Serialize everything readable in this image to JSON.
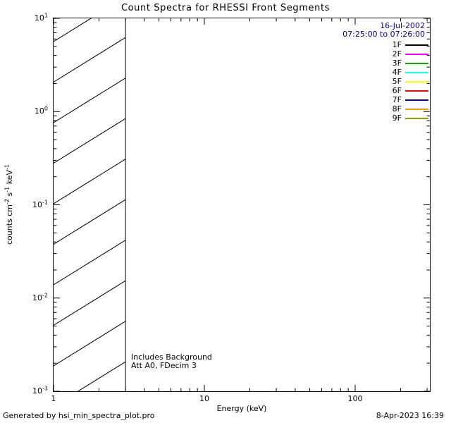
{
  "title": "Count Spectra for RHESSI Front Segments",
  "annotations": {
    "date": "16-Jul-2002",
    "time_range": "07:25:00 to 07:26:00",
    "includes_background": "Includes Background",
    "attenuator": "Att A0, FDecim 3",
    "generated_by": "Generated by hsi_min_spectra_plot.pro",
    "generated_timestamp": "8-Apr-2023 16:39"
  },
  "colors": {
    "date_text": "#000080",
    "axis": "#000000",
    "background": "#ffffff"
  },
  "legend": {
    "position": "top-right-inside",
    "entries": [
      {
        "label": "1F",
        "color": "#000000"
      },
      {
        "label": "2F",
        "color": "#ff00ff"
      },
      {
        "label": "3F",
        "color": "#00b300"
      },
      {
        "label": "4F",
        "color": "#00ffff"
      },
      {
        "label": "5F",
        "color": "#ffff00"
      },
      {
        "label": "6F",
        "color": "#ff0000"
      },
      {
        "label": "7F",
        "color": "#0000c8"
      },
      {
        "label": "8F",
        "color": "#ff9900"
      },
      {
        "label": "9F",
        "color": "#9b9b00"
      }
    ]
  },
  "axes": {
    "xlabel": "Energy (keV)",
    "ylabel_segments": [
      {
        "text": "counts cm"
      },
      {
        "sup": "-2"
      },
      {
        "text": " s"
      },
      {
        "sup": "-1"
      },
      {
        "text": " keV"
      },
      {
        "sup": "-1"
      }
    ],
    "x_ticks": [
      {
        "label": "1",
        "value": 1
      },
      {
        "label": "10",
        "value": 10
      },
      {
        "label": "100",
        "value": 100
      }
    ],
    "y_ticks": [
      {
        "base": "10",
        "exp": "-3",
        "value": 0.001
      },
      {
        "base": "10",
        "exp": "-2",
        "value": 0.01
      },
      {
        "base": "10",
        "exp": "-1",
        "value": 0.1
      },
      {
        "base": "10",
        "exp": "0",
        "value": 1
      },
      {
        "base": "10",
        "exp": "1",
        "value": 10
      }
    ]
  },
  "chart_data": {
    "type": "line",
    "title": "Count Spectra for RHESSI Front Segments",
    "xlabel": "Energy (keV)",
    "ylabel": "counts cm^-2 s^-1 keV^-1",
    "xscale": "log",
    "yscale": "log",
    "xlim": [
      1,
      300
    ],
    "ylim": [
      0.001,
      10
    ],
    "grid": false,
    "legend_position": "top-right-inside",
    "time_interval": "16-Jul-2002 07:25:00 to 07:26:00",
    "series": [
      {
        "name": "1F",
        "values": []
      },
      {
        "name": "2F",
        "values": []
      },
      {
        "name": "3F",
        "values": []
      },
      {
        "name": "4F",
        "values": []
      },
      {
        "name": "5F",
        "values": []
      },
      {
        "name": "6F",
        "values": []
      },
      {
        "name": "7F",
        "values": []
      },
      {
        "name": "8F",
        "values": []
      },
      {
        "name": "9F",
        "values": []
      }
    ],
    "hatched_region": {
      "x_from": 1,
      "x_to": 3,
      "y_from": 0.001,
      "y_to": 10,
      "style": "diagonal-hatch",
      "note": "hatched low-energy band below 3 keV; no spectral curves drawn in plot"
    }
  }
}
